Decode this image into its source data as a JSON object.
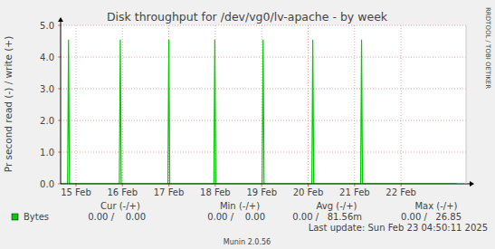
{
  "chart_data": {
    "type": "line",
    "title": "Disk throughput for /dev/vg0/lv-apache - by week",
    "y_label": "Pr second read (-) / write (+)",
    "x": [
      14.67,
      14.82,
      14.84,
      14.86,
      15.935,
      15.955,
      15.975,
      16.98,
      17.0,
      17.02,
      17.97,
      17.99,
      18.01,
      19.01,
      19.03,
      19.05,
      20.08,
      20.1,
      20.12,
      21.13,
      21.15,
      21.17,
      23.2
    ],
    "series": [
      {
        "name": "Bytes",
        "color": "#00cc00",
        "values": [
          0,
          0,
          4.55,
          0,
          0,
          4.55,
          0,
          0,
          4.55,
          0,
          0,
          4.55,
          0,
          0,
          4.55,
          0,
          0,
          4.55,
          0,
          0,
          4.55,
          0,
          0
        ]
      }
    ],
    "xlim": [
      14.67,
      23.4
    ],
    "xticks": [
      {
        "value": 15,
        "label": "15 Feb"
      },
      {
        "value": 16,
        "label": "16 Feb"
      },
      {
        "value": 17,
        "label": "17 Feb"
      },
      {
        "value": 18,
        "label": "18 Feb"
      },
      {
        "value": 19,
        "label": "19 Feb"
      },
      {
        "value": 20,
        "label": "20 Feb"
      },
      {
        "value": 21,
        "label": "21 Feb"
      },
      {
        "value": 22,
        "label": "22 Feb"
      }
    ],
    "ylim": [
      0,
      5
    ],
    "yticks": [
      {
        "value": 0,
        "label": "0.0"
      },
      {
        "value": 1,
        "label": "1.0"
      },
      {
        "value": 2,
        "label": "2.0"
      },
      {
        "value": 3,
        "label": "3.0"
      },
      {
        "value": 4,
        "label": "4.0"
      },
      {
        "value": 5,
        "label": "5.0"
      }
    ],
    "grid": true,
    "summary": {
      "columns": [
        "Cur (-/+)",
        "Min (-/+)",
        "Avg (-/+)",
        "Max (-/+)"
      ],
      "values": [
        "0.00 /    0.00",
        "0.00 /    0.00",
        "0.00 /   81.56m",
        "0.00 /   26.85"
      ]
    },
    "annotations": [
      "Last update: Sun Feb 23 04:50:11 2025",
      "Munin 2.0.56",
      "RRDTOOL / TOBI OETIKER"
    ]
  }
}
